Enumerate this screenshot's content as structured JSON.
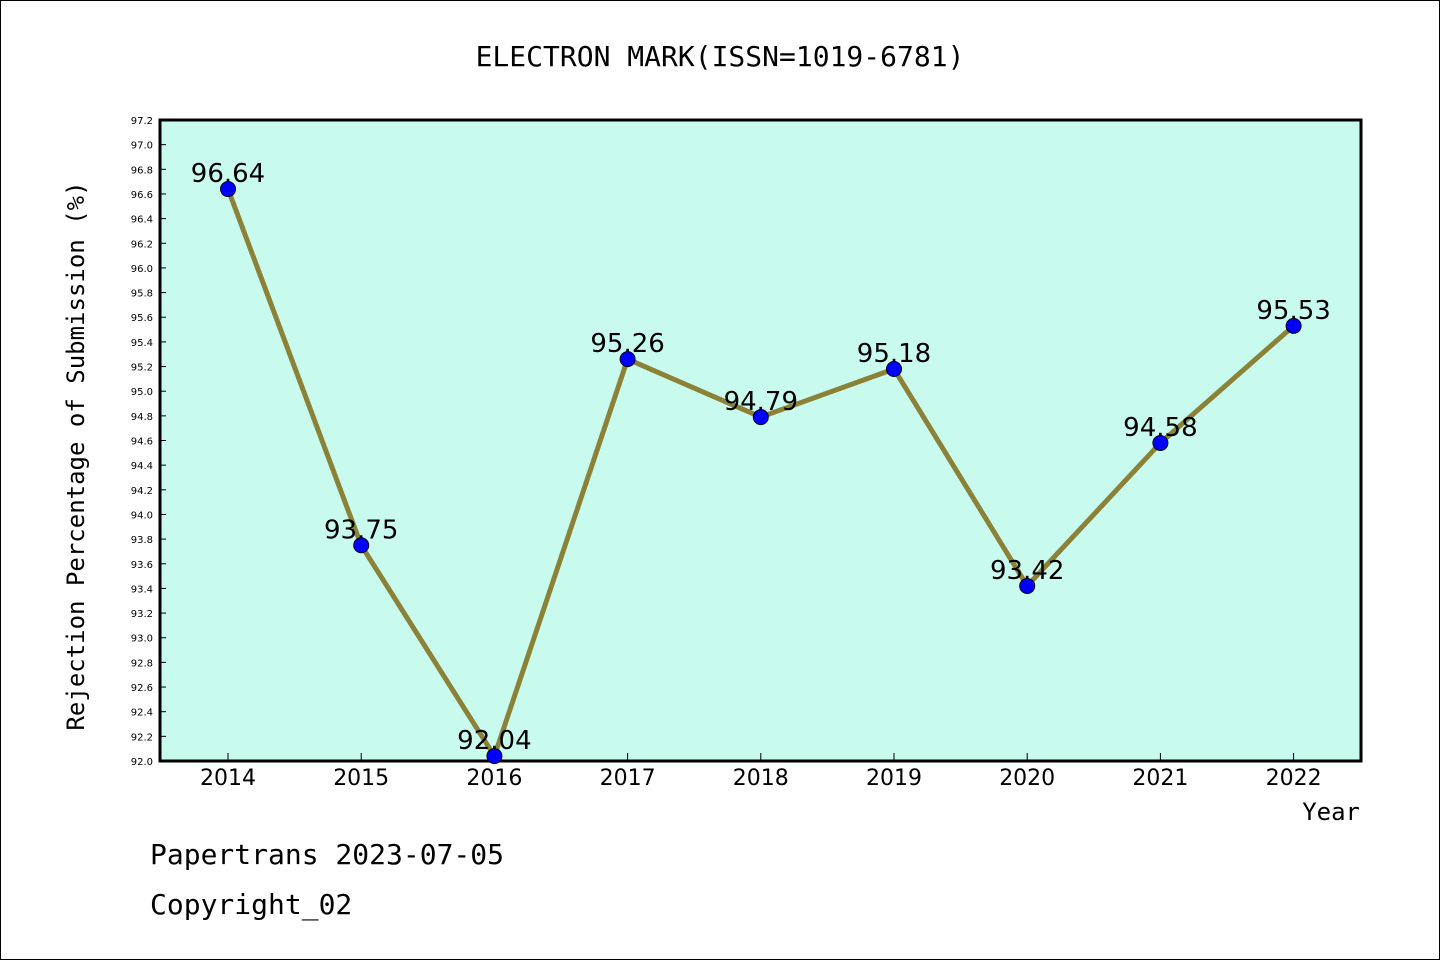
{
  "chart_data": {
    "type": "line",
    "title": "ELECTRON MARK(ISSN=1019-6781)",
    "xlabel": "Year",
    "ylabel": "Rejection Percentage of Submission (%)",
    "categories": [
      "2014",
      "2015",
      "2016",
      "2017",
      "2018",
      "2019",
      "2020",
      "2021",
      "2022"
    ],
    "series": [
      {
        "values": [
          96.64,
          93.75,
          92.04,
          95.26,
          94.79,
          95.18,
          93.42,
          94.58,
          95.53
        ],
        "labels": [
          "96.64",
          "93.75",
          "92.04",
          "95.26",
          "94.79",
          "95.18",
          "93.42",
          "94.58",
          "95.53"
        ]
      }
    ],
    "ylim": [
      92.0,
      97.2
    ],
    "yticks": [
      "92.0",
      "92.2",
      "92.4",
      "92.6",
      "92.8",
      "93.0",
      "93.2",
      "93.4",
      "93.6",
      "93.8",
      "94.0",
      "94.2",
      "94.4",
      "94.6",
      "94.8",
      "95.0",
      "95.2",
      "95.4",
      "95.6",
      "95.8",
      "96.0",
      "96.2",
      "96.4",
      "96.6",
      "96.8",
      "97.0",
      "97.2"
    ],
    "grid": false,
    "colors": {
      "plot_background": "#c8fbee",
      "line": "#8b8238",
      "marker": "#0000ff"
    }
  },
  "footer": {
    "line1": "Papertrans 2023-07-05",
    "line2": "Copyright_02"
  }
}
